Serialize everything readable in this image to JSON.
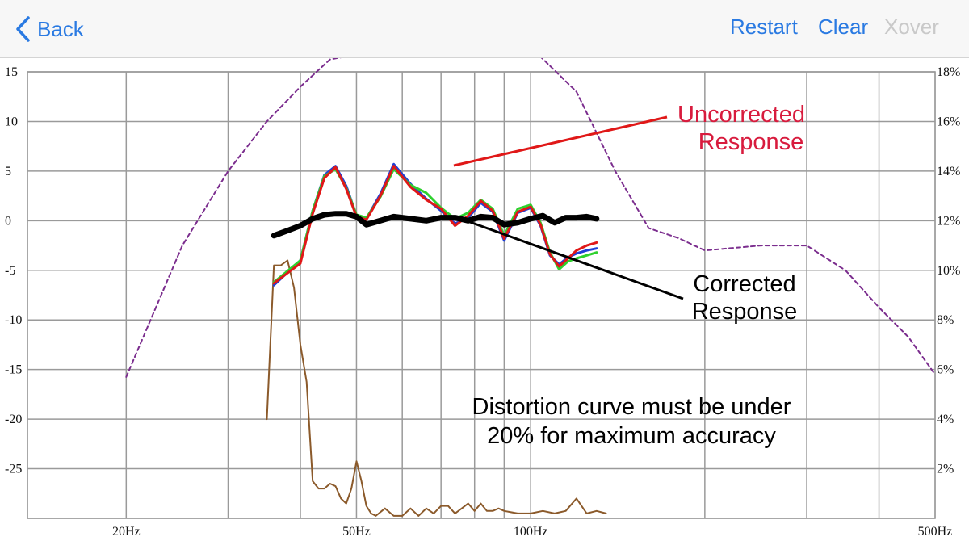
{
  "nav": {
    "back_label": "Back",
    "restart_label": "Restart",
    "clear_label": "Clear",
    "xover_label": "Xover",
    "accent_color": "#2a7ae2",
    "disabled_color": "#c9c9c9"
  },
  "chart_data": {
    "type": "line",
    "x_scale": "log",
    "xlim": [
      13.5,
      500
    ],
    "ylim_left": [
      -30,
      15
    ],
    "ylim_right": [
      0,
      18
    ],
    "left_ticks": [
      "15",
      "10",
      "5",
      "0",
      "-5",
      "-10",
      "-15",
      "-20",
      "-25"
    ],
    "right_ticks": [
      "18%",
      "16%",
      "14%",
      "12%",
      "10%",
      "8%",
      "6%",
      "4%",
      "2%"
    ],
    "x_tick_labels": [
      {
        "label": "20Hz",
        "freq": 20
      },
      {
        "label": "50Hz",
        "freq": 50
      },
      {
        "label": "100Hz",
        "freq": 100
      },
      {
        "label": "500Hz",
        "freq": 500
      }
    ],
    "grid": true,
    "annotations": {
      "uncorrected": [
        "Uncorrected",
        "Response"
      ],
      "corrected": [
        "Corrected",
        "Response"
      ],
      "distortion": [
        "Distortion curve must be under",
        "20% for maximum accuracy"
      ]
    },
    "series": [
      {
        "color": "#7b2d8e",
        "style": "dashed",
        "axis": "right",
        "x": [
          20,
          25,
          30,
          35,
          40,
          45,
          50,
          60,
          70,
          80,
          90,
          100,
          120,
          140,
          160,
          180,
          200,
          250,
          300,
          350,
          400,
          450,
          500
        ],
        "y": [
          5.7,
          11.0,
          14.0,
          16.0,
          17.4,
          18.5,
          18.7,
          18.8,
          18.9,
          18.9,
          19.0,
          19.0,
          17.2,
          14.0,
          11.7,
          11.3,
          10.8,
          11.0,
          11.0,
          10.0,
          8.5,
          7.3,
          5.8
        ]
      },
      {
        "color": "#8b5a2b",
        "style": "solid",
        "axis": "right",
        "x": [
          35,
          36,
          37,
          38,
          39,
          40,
          41,
          42,
          43,
          44,
          45,
          46,
          47,
          48,
          49,
          50,
          51,
          52,
          53,
          54,
          56,
          58,
          60,
          62,
          64,
          66,
          68,
          70,
          72,
          74,
          76,
          78,
          80,
          82,
          84,
          86,
          88,
          90,
          95,
          100,
          105,
          110,
          115,
          120,
          125,
          130,
          135
        ],
        "y": [
          4.0,
          10.2,
          10.2,
          10.4,
          9.3,
          7.0,
          5.5,
          1.5,
          1.2,
          1.2,
          1.4,
          1.3,
          0.8,
          0.6,
          1.2,
          2.3,
          1.5,
          0.5,
          0.2,
          0.1,
          0.4,
          0.1,
          0.1,
          0.4,
          0.1,
          0.4,
          0.2,
          0.5,
          0.5,
          0.2,
          0.4,
          0.6,
          0.3,
          0.6,
          0.3,
          0.3,
          0.4,
          0.3,
          0.2,
          0.2,
          0.3,
          0.2,
          0.3,
          0.8,
          0.2,
          0.3,
          0.2
        ]
      },
      {
        "color": "#1f3fd6",
        "style": "solid",
        "axis": "left",
        "x": [
          36,
          40,
          42,
          44,
          46,
          48,
          50,
          52,
          55,
          58,
          62,
          66,
          70,
          74,
          78,
          82,
          86,
          90,
          95,
          100,
          104,
          108,
          112,
          116,
          120,
          125,
          130
        ],
        "y": [
          -6.5,
          -4,
          1,
          4.6,
          5.5,
          3.5,
          0.5,
          0.2,
          2.7,
          5.7,
          3.7,
          2.2,
          1.0,
          -0.3,
          0.3,
          1.8,
          0.9,
          -2.0,
          0.8,
          1.3,
          -0.5,
          -3.5,
          -4.4,
          -3.7,
          -3.3,
          -3.0,
          -2.8
        ]
      },
      {
        "color": "#2ed12e",
        "style": "solid",
        "axis": "left",
        "x": [
          36,
          40,
          42,
          44,
          46,
          48,
          50,
          52,
          55,
          58,
          62,
          66,
          70,
          74,
          78,
          82,
          86,
          90,
          95,
          100,
          104,
          108,
          112,
          116,
          120,
          125,
          130
        ],
        "y": [
          -6.2,
          -4,
          1,
          4.5,
          5.2,
          3.3,
          0.6,
          0.3,
          2.4,
          5.2,
          3.6,
          2.8,
          1.3,
          0.2,
          0.8,
          2.1,
          1.2,
          -1.5,
          1.2,
          1.6,
          -0.2,
          -3.2,
          -4.9,
          -4.1,
          -3.8,
          -3.5,
          -3.2
        ]
      },
      {
        "color": "#e01818",
        "style": "solid",
        "axis": "left",
        "x": [
          36,
          40,
          42,
          44,
          46,
          48,
          50,
          52,
          55,
          58,
          62,
          66,
          70,
          74,
          78,
          82,
          86,
          90,
          95,
          100,
          104,
          108,
          112,
          116,
          120,
          125,
          130
        ],
        "y": [
          -6.3,
          -4.3,
          0.7,
          4.3,
          5.4,
          3.2,
          0.4,
          0.1,
          2.5,
          5.5,
          3.4,
          2.1,
          1.2,
          -0.5,
          0.5,
          2.0,
          1.0,
          -1.8,
          0.9,
          1.4,
          -0.4,
          -3.4,
          -4.6,
          -3.8,
          -3.0,
          -2.5,
          -2.2
        ]
      },
      {
        "color": "#000000",
        "style": "bold",
        "axis": "left",
        "x": [
          36,
          38,
          40,
          42,
          44,
          46,
          48,
          50,
          52,
          55,
          58,
          62,
          66,
          70,
          74,
          78,
          82,
          86,
          90,
          95,
          100,
          105,
          110,
          115,
          120,
          125,
          130
        ],
        "y": [
          -1.5,
          -1.0,
          -0.5,
          0.2,
          0.6,
          0.7,
          0.7,
          0.4,
          -0.4,
          0.0,
          0.4,
          0.2,
          0.0,
          0.3,
          0.3,
          0.0,
          0.4,
          0.3,
          -0.4,
          -0.2,
          0.2,
          0.5,
          -0.2,
          0.3,
          0.3,
          0.4,
          0.2
        ]
      }
    ]
  }
}
